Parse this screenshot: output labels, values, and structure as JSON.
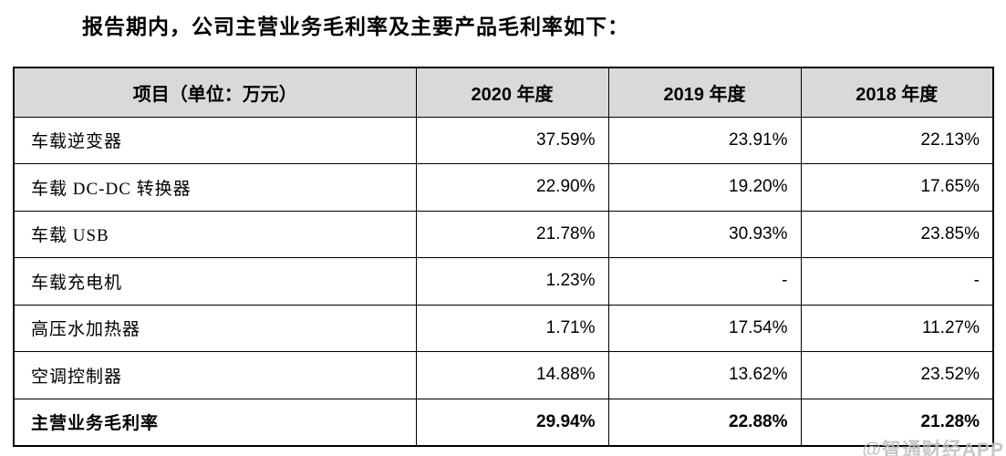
{
  "page": {
    "title": "报告期内，公司主营业务毛利率及主要产品毛利率如下："
  },
  "table": {
    "headers": [
      "项目（单位：万元）",
      "2020 年度",
      "2019 年度",
      "2018 年度"
    ],
    "rows": [
      {
        "label": "车载逆变器",
        "values": [
          "37.59%",
          "23.91%",
          "22.13%"
        ],
        "bold": false
      },
      {
        "label": "车载 DC-DC 转换器",
        "values": [
          "22.90%",
          "19.20%",
          "17.65%"
        ],
        "bold": false
      },
      {
        "label": "车载 USB",
        "values": [
          "21.78%",
          "30.93%",
          "23.85%"
        ],
        "bold": false
      },
      {
        "label": "车载充电机",
        "values": [
          "1.23%",
          "-",
          "-"
        ],
        "bold": false
      },
      {
        "label": "高压水加热器",
        "values": [
          "1.71%",
          "17.54%",
          "11.27%"
        ],
        "bold": false
      },
      {
        "label": "空调控制器",
        "values": [
          "14.88%",
          "13.62%",
          "23.52%"
        ],
        "bold": false
      },
      {
        "label": "主营业务毛利率",
        "values": [
          "29.94%",
          "22.88%",
          "21.28%"
        ],
        "bold": true
      }
    ]
  },
  "watermark": {
    "text": "@智通财经APP"
  },
  "colors": {
    "header_bg": "#d9d9d9",
    "border": "#000000",
    "text": "#000000",
    "watermark": "#bdbdbd"
  }
}
